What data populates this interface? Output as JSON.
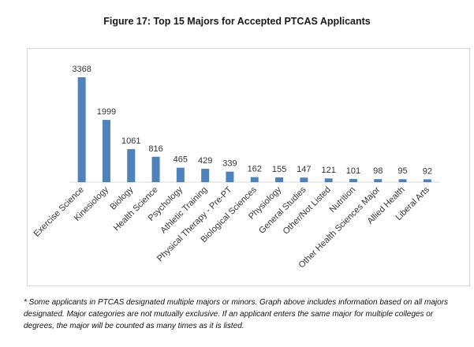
{
  "chart_data": {
    "type": "bar",
    "title": "Figure 17: Top 15 Majors for Accepted PTCAS Applicants",
    "categories": [
      "Exercise Science",
      "Kinesiology",
      "Biology",
      "Health Science",
      "Psychology",
      "Athletic Training",
      "Physical Therapy - Pre-PT",
      "Biological Sciences",
      "Physiology",
      "General Studies",
      "Other/Not Listed",
      "Nutrition",
      "Other Health Sciences Major",
      "Allied Health",
      "Liberal Arts"
    ],
    "values": [
      3368,
      1999,
      1061,
      816,
      465,
      429,
      339,
      162,
      155,
      147,
      121,
      101,
      98,
      95,
      92
    ],
    "xlabel": "",
    "ylabel": "",
    "ylim": [
      0,
      3368
    ],
    "grid": false,
    "data_labels": true,
    "bar_color": "#4f81bd"
  },
  "footnote": "* Some applicants in PTCAS designated multiple majors or minors.   Graph above includes information based on all majors designated.  Major categories are not mutually exclusive.  If an applicant enters the same major for multiple colleges or degrees, the major will be counted as many times as it is listed."
}
